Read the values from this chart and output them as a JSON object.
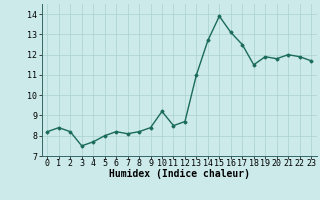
{
  "x": [
    0,
    1,
    2,
    3,
    4,
    5,
    6,
    7,
    8,
    9,
    10,
    11,
    12,
    13,
    14,
    15,
    16,
    17,
    18,
    19,
    20,
    21,
    22,
    23
  ],
  "y": [
    8.2,
    8.4,
    8.2,
    7.5,
    7.7,
    8.0,
    8.2,
    8.1,
    8.2,
    8.4,
    9.2,
    8.5,
    8.7,
    11.0,
    12.7,
    13.9,
    13.1,
    12.5,
    11.5,
    11.9,
    11.8,
    12.0,
    11.9,
    11.7
  ],
  "line_color": "#1a6b5a",
  "marker": "D",
  "marker_size": 1.5,
  "bg_color": "#cceaea",
  "grid_color": "#aacfcf",
  "xlabel": "Humidex (Indice chaleur)",
  "xlabel_fontsize": 7,
  "tick_fontsize": 6,
  "ylim": [
    7,
    14.5
  ],
  "xlim": [
    -0.5,
    23.5
  ],
  "yticks": [
    7,
    8,
    9,
    10,
    11,
    12,
    13,
    14
  ],
  "xticks": [
    0,
    1,
    2,
    3,
    4,
    5,
    6,
    7,
    8,
    9,
    10,
    11,
    12,
    13,
    14,
    15,
    16,
    17,
    18,
    19,
    20,
    21,
    22,
    23
  ],
  "linewidth": 1.0
}
